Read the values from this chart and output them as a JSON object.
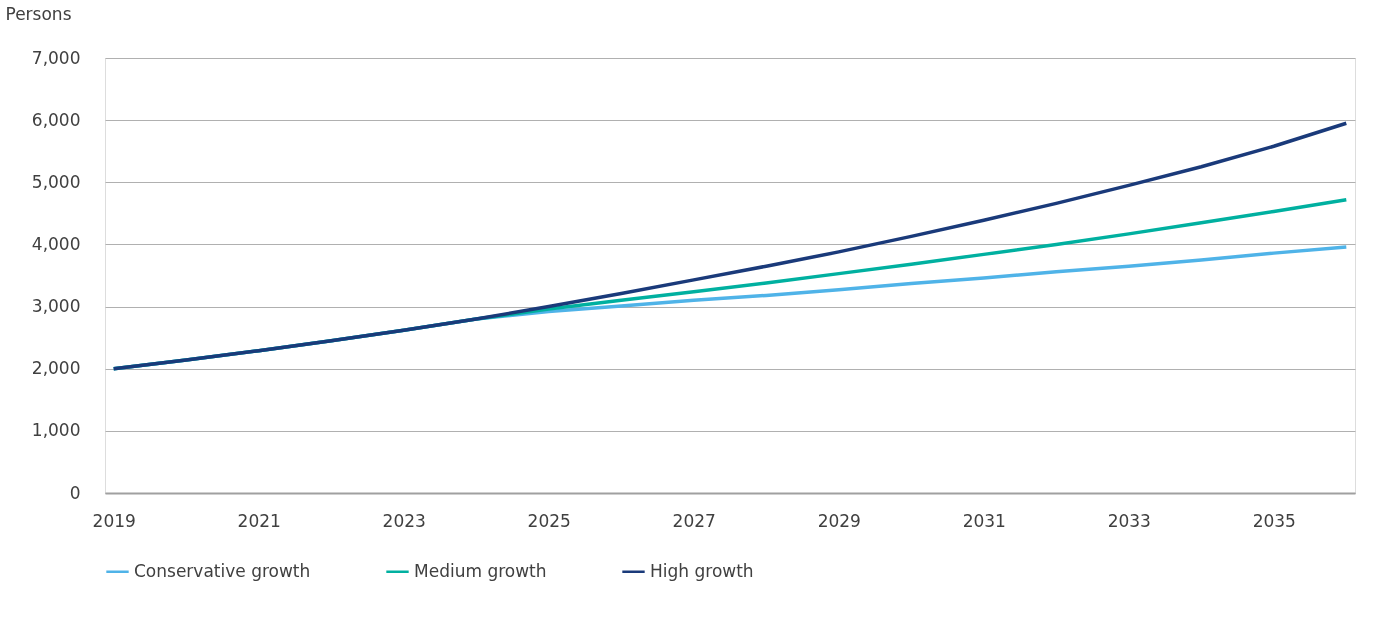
{
  "chart_data": {
    "type": "line",
    "ylabel": "Persons",
    "categories": [
      "2019",
      null,
      "2021",
      null,
      "2023",
      null,
      "2025",
      null,
      "2027",
      null,
      "2029",
      null,
      "2031",
      null,
      "2033",
      null,
      "2035",
      null
    ],
    "series": [
      {
        "name": "Conservative growth",
        "color": "#4fb3e8",
        "values": [
          2000,
          2140,
          2290,
          2450,
          2620,
          2800,
          2920,
          3010,
          3100,
          3180,
          3270,
          3370,
          3460,
          3560,
          3650,
          3750,
          3860,
          3960
        ]
      },
      {
        "name": "Medium growth",
        "color": "#00b0a0",
        "values": [
          2000,
          2140,
          2290,
          2450,
          2620,
          2800,
          2960,
          3100,
          3240,
          3380,
          3530,
          3680,
          3840,
          4000,
          4170,
          4350,
          4530,
          4720
        ]
      },
      {
        "name": "High growth",
        "color": "#1a3a7a",
        "values": [
          2000,
          2140,
          2290,
          2450,
          2620,
          2800,
          3000,
          3210,
          3430,
          3650,
          3880,
          4130,
          4390,
          4660,
          4950,
          5250,
          5580,
          5950
        ]
      }
    ],
    "ylim": [
      0,
      7000
    ],
    "yticks": [
      {
        "value": 0,
        "label": "0"
      },
      {
        "value": 1000,
        "label": "1,000"
      },
      {
        "value": 2000,
        "label": "2,000"
      },
      {
        "value": 3000,
        "label": "3,000"
      },
      {
        "value": 4000,
        "label": "4,000"
      },
      {
        "value": 5000,
        "label": "5,000"
      },
      {
        "value": 6000,
        "label": "6,000"
      },
      {
        "value": 7000,
        "label": "7,000"
      }
    ],
    "grid": "y",
    "legend": "bottom",
    "marker": "none",
    "line_style": "solid"
  }
}
